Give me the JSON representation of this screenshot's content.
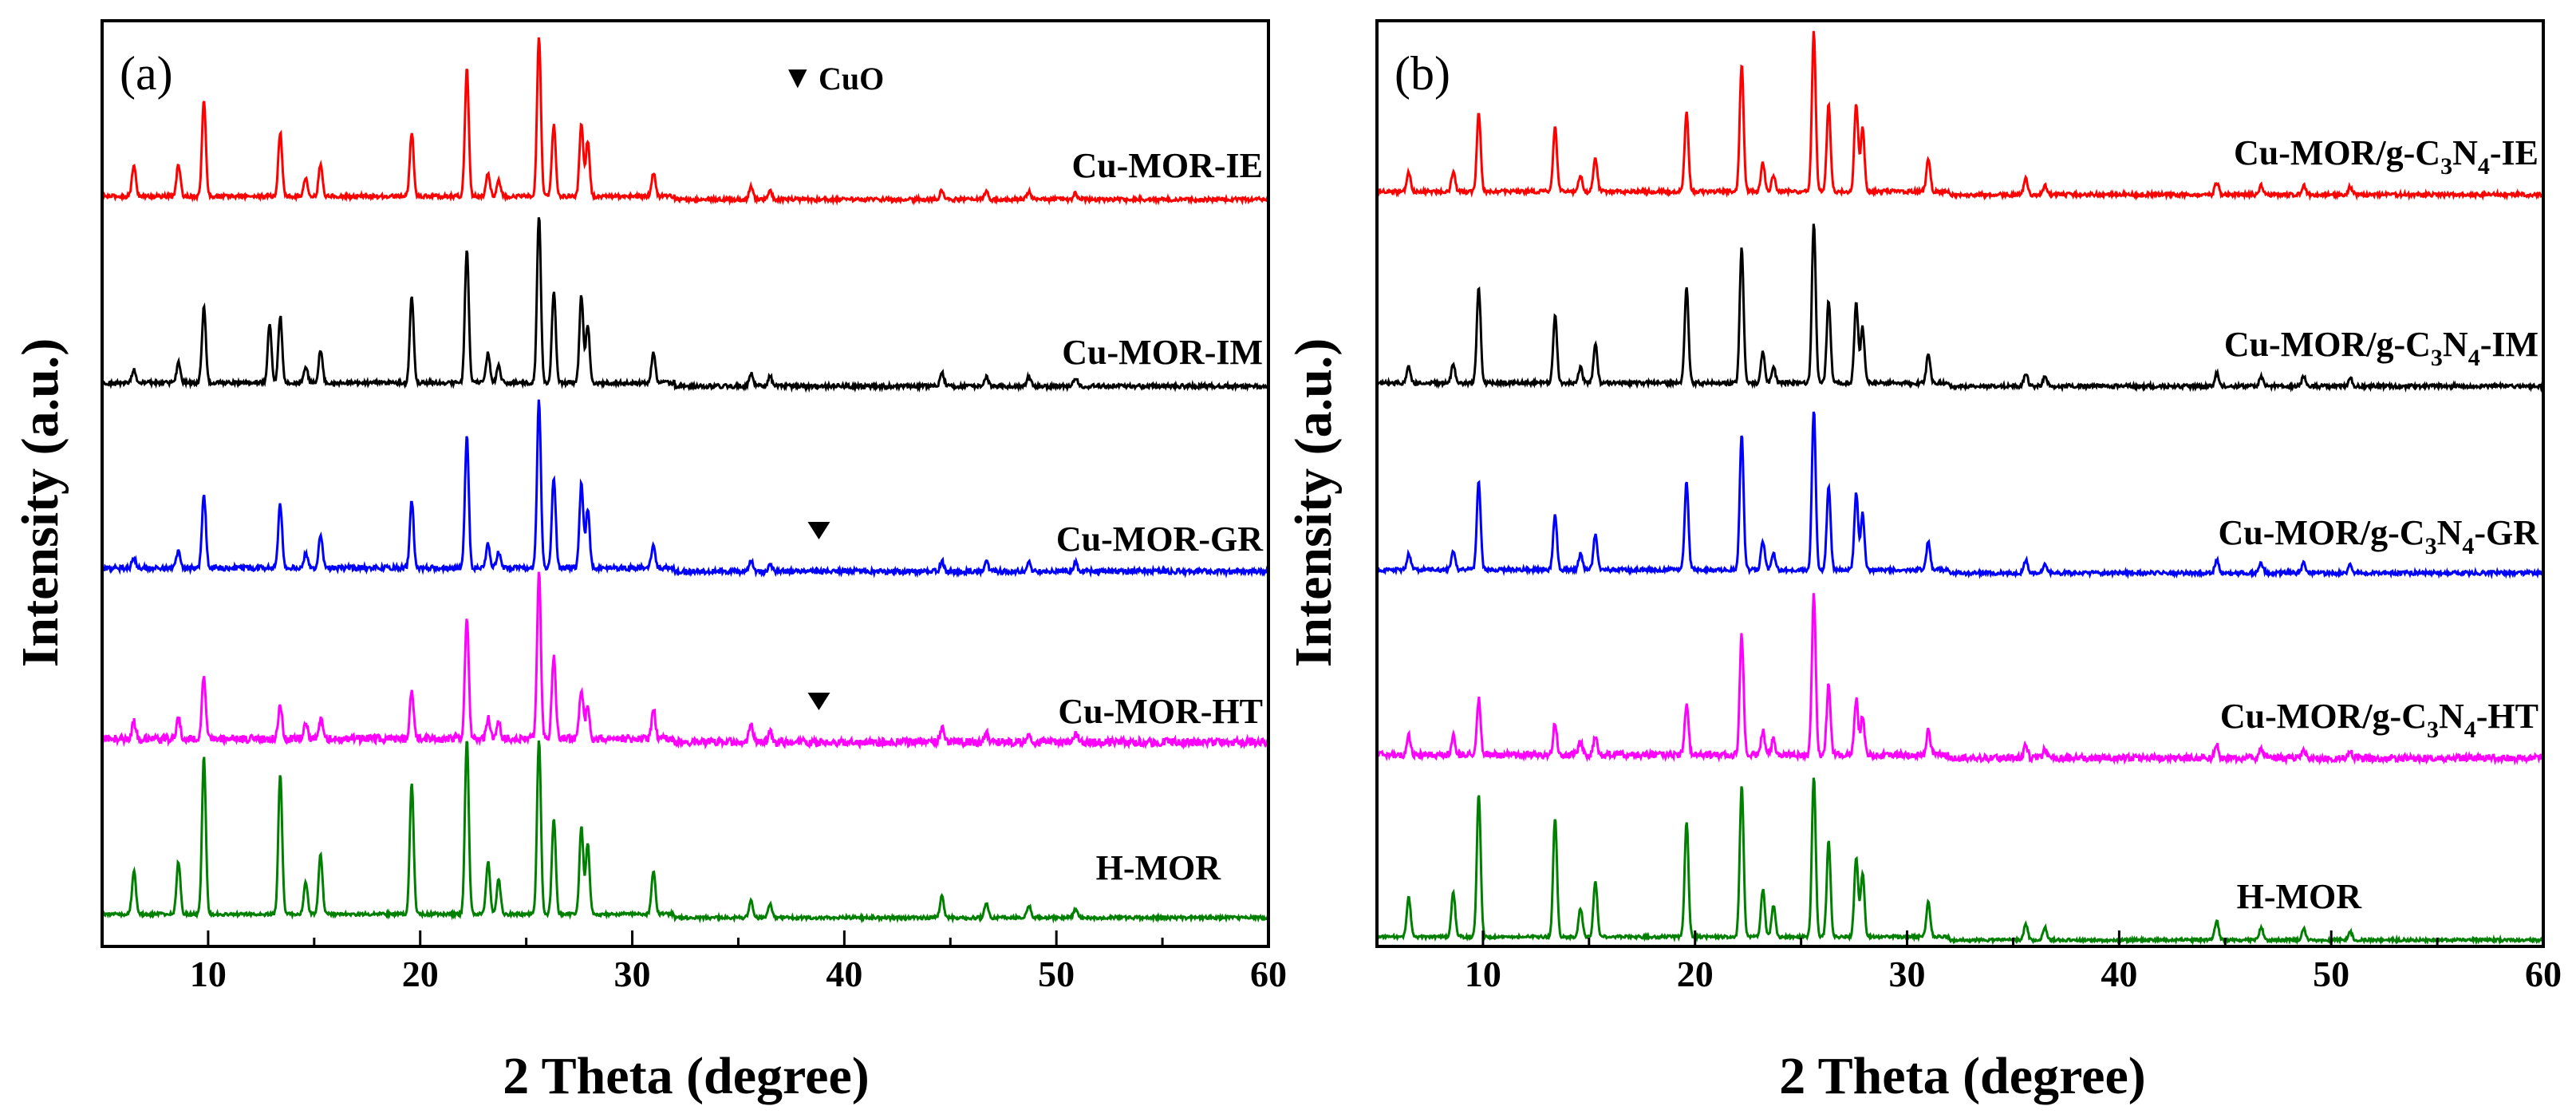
{
  "chart_data": [
    {
      "panel": "(a)",
      "type": "line",
      "xlabel": "2 Theta (degree)",
      "ylabel": "Intensity (a.u.)",
      "xlim": [
        5,
        60
      ],
      "xticks": [
        10,
        20,
        30,
        40,
        50,
        60
      ],
      "xtick_labels": [
        "10",
        "20",
        "30",
        "40",
        "50",
        "60"
      ],
      "legend_marker": {
        "symbol": "▼",
        "label": "CuO"
      },
      "peak_positions": [
        6.5,
        8.6,
        9.8,
        13.4,
        14.6,
        15.3,
        19.6,
        22.2,
        23.2,
        23.7,
        25.6,
        26.3,
        27.6,
        27.9,
        31.0,
        35.6,
        36.5,
        44.6,
        46.7,
        48.7,
        50.9
      ],
      "series": [
        {
          "name": "Cu-MOR-IE",
          "color": "#ff0000",
          "offset": 4.0,
          "noise": 0.04,
          "intensities": [
            0.2,
            0.2,
            0.6,
            0.4,
            0.12,
            0.2,
            0.4,
            0.8,
            0.15,
            0.1,
            1.0,
            0.45,
            0.45,
            0.35,
            0.15,
            0.08,
            0.06,
            0.06,
            0.05,
            0.05,
            0.04
          ]
        },
        {
          "name": "Cu-MOR-IM",
          "color": "#000000",
          "offset": 3.0,
          "noise": 0.04,
          "intensities": [
            0.08,
            0.12,
            0.45,
            0.4,
            0.1,
            0.2,
            0.52,
            0.8,
            0.18,
            0.1,
            1.0,
            0.55,
            0.52,
            0.35,
            0.18,
            0.08,
            0.06,
            0.08,
            0.06,
            0.06,
            0.05
          ],
          "extra_peaks": [
            {
              "x": 12.9,
              "h": 0.35
            }
          ]
        },
        {
          "name": "Cu-MOR-GR",
          "color": "#0000ff",
          "offset": 2.0,
          "noise": 0.05,
          "intensities": [
            0.06,
            0.1,
            0.45,
            0.38,
            0.08,
            0.2,
            0.4,
            0.78,
            0.15,
            0.1,
            1.0,
            0.55,
            0.5,
            0.35,
            0.14,
            0.06,
            0.05,
            0.06,
            0.06,
            0.05,
            0.05
          ],
          "markers": [
            38.8
          ]
        },
        {
          "name": "Cu-MOR-HT",
          "color": "#ff00ff",
          "offset": 1.0,
          "noise": 0.08,
          "intensities": [
            0.1,
            0.12,
            0.38,
            0.2,
            0.08,
            0.12,
            0.3,
            0.72,
            0.12,
            0.1,
            1.0,
            0.5,
            0.3,
            0.2,
            0.18,
            0.1,
            0.06,
            0.08,
            0.06,
            0.05,
            0.05
          ],
          "markers": [
            38.8
          ]
        },
        {
          "name": "H-MOR",
          "color": "#008000",
          "offset": 0.0,
          "noise": 0.03,
          "intensities": [
            0.25,
            0.3,
            0.9,
            0.8,
            0.18,
            0.35,
            0.75,
            1.0,
            0.3,
            0.2,
            1.0,
            0.55,
            0.5,
            0.4,
            0.25,
            0.1,
            0.08,
            0.12,
            0.08,
            0.07,
            0.05
          ]
        }
      ]
    },
    {
      "panel": "(b)",
      "type": "line",
      "xlabel": "2 Theta (degree)",
      "ylabel": "Intensity (a.u.)",
      "xlim": [
        5,
        60
      ],
      "xticks": [
        10,
        20,
        30,
        40,
        50,
        60
      ],
      "xtick_labels": [
        "10",
        "20",
        "30",
        "40",
        "50",
        "60"
      ],
      "peak_positions": [
        6.5,
        8.6,
        9.8,
        13.4,
        14.6,
        15.3,
        19.6,
        22.2,
        23.2,
        23.7,
        25.6,
        26.3,
        27.6,
        27.9,
        31.0,
        35.6,
        36.5,
        44.6,
        46.7,
        48.7,
        50.9
      ],
      "series": [
        {
          "name": "Cu-MOR/g-C",
          "name_sub1": "3",
          "name_mid": "N",
          "name_sub2": "4",
          "name_suffix": "-IE",
          "color": "#ff0000",
          "offset": 4.0,
          "noise": 0.04,
          "intensities": [
            0.12,
            0.12,
            0.5,
            0.4,
            0.1,
            0.22,
            0.5,
            0.8,
            0.18,
            0.1,
            1.0,
            0.55,
            0.55,
            0.4,
            0.2,
            0.1,
            0.06,
            0.08,
            0.06,
            0.06,
            0.05
          ]
        },
        {
          "name": "Cu-MOR/g-C",
          "name_sub1": "3",
          "name_mid": "N",
          "name_sub2": "4",
          "name_suffix": "-IM",
          "color": "#000000",
          "offset": 3.0,
          "noise": 0.04,
          "intensities": [
            0.1,
            0.12,
            0.6,
            0.42,
            0.1,
            0.25,
            0.6,
            0.85,
            0.2,
            0.1,
            1.0,
            0.52,
            0.5,
            0.35,
            0.18,
            0.08,
            0.06,
            0.08,
            0.06,
            0.06,
            0.05
          ]
        },
        {
          "name": "Cu-MOR/g-C",
          "name_sub1": "3",
          "name_mid": "N",
          "name_sub2": "4",
          "name_suffix": "-GR",
          "color": "#0000ff",
          "offset": 2.0,
          "noise": 0.04,
          "intensities": [
            0.1,
            0.12,
            0.55,
            0.35,
            0.1,
            0.22,
            0.55,
            0.85,
            0.18,
            0.1,
            1.0,
            0.52,
            0.48,
            0.35,
            0.18,
            0.08,
            0.06,
            0.08,
            0.06,
            0.06,
            0.05
          ]
        },
        {
          "name": "Cu-MOR/g-C",
          "name_sub1": "3",
          "name_mid": "N",
          "name_sub2": "4",
          "name_suffix": "-HT",
          "color": "#ff00ff",
          "offset": 1.0,
          "noise": 0.07,
          "intensities": [
            0.12,
            0.12,
            0.35,
            0.2,
            0.08,
            0.12,
            0.32,
            0.75,
            0.15,
            0.1,
            1.0,
            0.45,
            0.35,
            0.25,
            0.15,
            0.08,
            0.06,
            0.08,
            0.06,
            0.05,
            0.05
          ]
        },
        {
          "name": "H-MOR",
          "color": "#008000",
          "offset": 0.0,
          "noise": 0.03,
          "intensities": [
            0.25,
            0.28,
            0.9,
            0.75,
            0.18,
            0.35,
            0.72,
            0.95,
            0.3,
            0.2,
            1.0,
            0.6,
            0.5,
            0.4,
            0.22,
            0.1,
            0.08,
            0.12,
            0.08,
            0.07,
            0.05
          ]
        }
      ]
    }
  ]
}
